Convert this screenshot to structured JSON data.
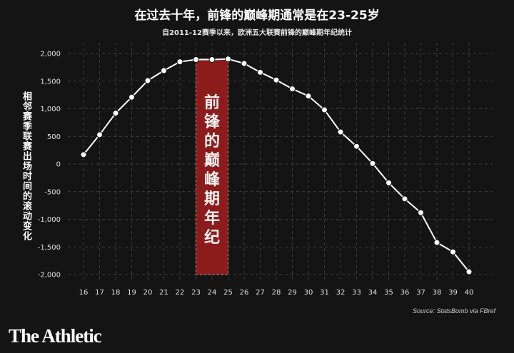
{
  "header": {
    "title": "在过去十年，前锋的巅峰期通常是在23-25岁",
    "subtitle": "自2011-12赛季以来，欧洲五大联赛前锋的巅峰期年纪统计"
  },
  "footer": {
    "source": "Source: StatsBomb via FBref",
    "brand": "The Athletic"
  },
  "colors": {
    "background": "#141414",
    "line": "#ffffff",
    "marker": "#ffffff",
    "highlight": "#8c1c1c",
    "grid": "#4a4a4a"
  },
  "chart_data": {
    "type": "line",
    "title": "在过去十年，前锋的巅峰期通常是在23-25岁",
    "ylabel": "相邻赛季联赛出场时间的滚动变化",
    "xlabel": "",
    "x": [
      16,
      17,
      18,
      19,
      20,
      21,
      22,
      23,
      24,
      25,
      26,
      27,
      28,
      29,
      30,
      31,
      32,
      33,
      34,
      35,
      36,
      37,
      38,
      39,
      40
    ],
    "series": [
      {
        "name": "",
        "values": [
          170,
          530,
          920,
          1210,
          1510,
          1690,
          1850,
          1890,
          1890,
          1900,
          1820,
          1660,
          1520,
          1360,
          1230,
          980,
          580,
          320,
          10,
          -340,
          -630,
          -880,
          -1420,
          -1590,
          -1950
        ]
      }
    ],
    "ylim": [
      -2000,
      2000
    ],
    "yticks": [
      2000,
      1500,
      1000,
      500,
      0,
      -500,
      -1000,
      -1500,
      -2000
    ],
    "ytick_labels": [
      "2,000",
      "1,500",
      "1,000",
      "500",
      "0",
      "-500",
      "-1,000",
      "-1,500",
      "-2,000"
    ],
    "xlim": [
      16,
      40
    ],
    "grid": true,
    "highlight_band": {
      "x_range": [
        23,
        25
      ],
      "y_range": [
        -2000,
        1900
      ],
      "label": "前锋的巅峰期年纪"
    }
  }
}
